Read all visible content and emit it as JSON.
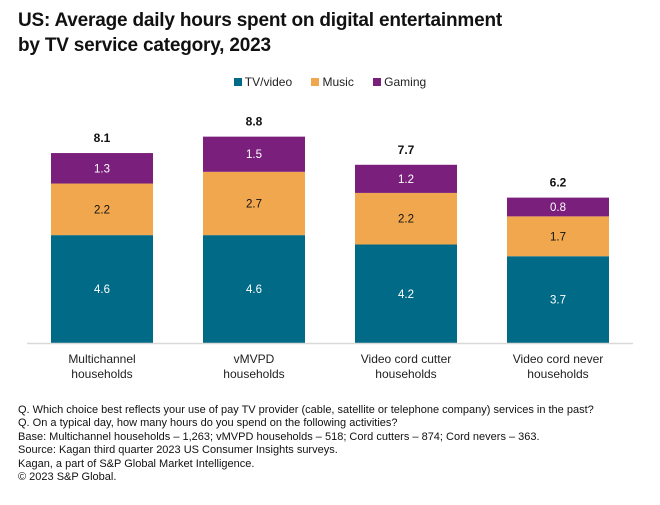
{
  "title_lines": [
    "US: Average daily hours spent on digital entertainment",
    "by TV service category, 2023"
  ],
  "chart_data": {
    "type": "bar",
    "stacked": true,
    "title": "US: Average daily hours spent on digital entertainment by TV service category, 2023",
    "xlabel": "",
    "ylabel": "",
    "ylim": [
      0,
      9
    ],
    "grid": false,
    "legend_position": "top-center",
    "categories": [
      [
        "Multichannel",
        "households"
      ],
      [
        "vMVPD",
        "households"
      ],
      [
        "Video cord cutter",
        "households"
      ],
      [
        "Video cord never",
        "households"
      ]
    ],
    "series": [
      {
        "name": "TV/video",
        "color": "#006a87",
        "label_color": "#ffffff",
        "values": [
          4.6,
          4.6,
          4.2,
          3.7
        ]
      },
      {
        "name": "Music",
        "color": "#f0a74d",
        "label_color": "#111111",
        "values": [
          2.2,
          2.7,
          2.2,
          1.7
        ]
      },
      {
        "name": "Gaming",
        "color": "#7a1f7c",
        "label_color": "#ffffff",
        "values": [
          1.3,
          1.5,
          1.2,
          0.8
        ]
      }
    ],
    "totals": [
      "8.1",
      "8.8",
      "7.7",
      "6.2"
    ],
    "value_labels": [
      [
        "4.6",
        "4.6",
        "4.2",
        "3.7"
      ],
      [
        "2.2",
        "2.7",
        "2.2",
        "1.7"
      ],
      [
        "1.3",
        "1.5",
        "1.2",
        "0.8"
      ]
    ],
    "axis_color": "#d9d9d9"
  },
  "notes": [
    "Q. Which choice best reflects your use of pay TV provider (cable, satellite or telephone company) services in the past?",
    "Q. On a typical day, how many hours do you spend on the following activities?",
    "Base: Multichannel households – 1,263; vMVPD households – 518; Cord cutters – 874; Cord nevers – 363.",
    "Source: Kagan third quarter 2023 US Consumer Insights surveys.",
    "Kagan, a part of S&P Global Market Intelligence.",
    "© 2023 S&P Global."
  ]
}
